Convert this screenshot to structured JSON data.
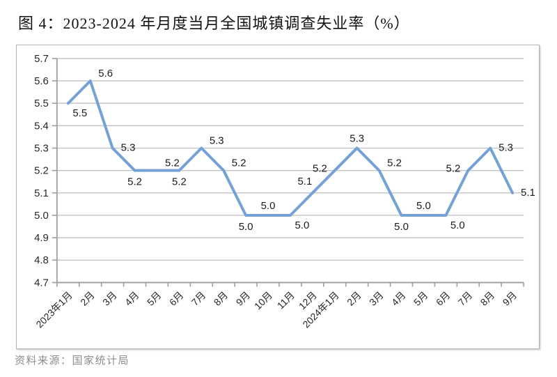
{
  "page": {
    "title": "图 4：2023-2024 年月度当月全国城镇调查失业率（%）",
    "source_note": "资料来源：国家统计局"
  },
  "colors": {
    "line": "#74A1D6",
    "gridline": "#c3c3c3",
    "axis": "#9e9e9e",
    "data_label": "#1a1a1a",
    "tick_label": "#262626",
    "background": "#ffffff",
    "border": "#b2b2b2",
    "source_text": "#8d8d8d"
  },
  "chart_data": {
    "type": "line",
    "title": "图 4：2023-2024 年月度当月全国城镇调查失业率（%）",
    "xlabel": "",
    "ylabel": "",
    "ylim": [
      4.7,
      5.7
    ],
    "ytick_step": 0.1,
    "ytick_labels": [
      "4.7",
      "4.8",
      "4.9",
      "5.0",
      "5.1",
      "5.2",
      "5.3",
      "5.4",
      "5.5",
      "5.6",
      "5.7"
    ],
    "grid": true,
    "legend_position": "none",
    "marker": "none",
    "categories": [
      "2023年1月",
      "2月",
      "3月",
      "4月",
      "5月",
      "6月",
      "7月",
      "8月",
      "9月",
      "10月",
      "11月",
      "12月",
      "2024年1月",
      "2月",
      "3月",
      "4月",
      "5月",
      "6月",
      "7月",
      "8月",
      "9月"
    ],
    "values": [
      5.5,
      5.6,
      5.3,
      5.2,
      5.2,
      5.2,
      5.3,
      5.2,
      5.0,
      5.0,
      5.0,
      5.1,
      5.2,
      5.3,
      5.2,
      5.0,
      5.0,
      5.0,
      5.2,
      5.3,
      5.1
    ],
    "data_labels": [
      "5.5",
      "5.6",
      "5.3",
      "5.2",
      "5.2",
      "5.2",
      "5.3",
      "5.2",
      "5.0",
      "5.0",
      "5.0",
      "5.1",
      "5.2",
      "5.3",
      "5.2",
      "5.0",
      "5.0",
      "5.0",
      "5.2",
      "5.3",
      "5.1"
    ],
    "label_positions": [
      "below-right",
      "above-right",
      "right",
      "below",
      "above-right",
      "below",
      "above-right",
      "above-right",
      "below",
      "above",
      "below-right",
      "above-left",
      "left",
      "above",
      "above-right",
      "below",
      "above",
      "below-right",
      "left",
      "right",
      "right"
    ]
  }
}
